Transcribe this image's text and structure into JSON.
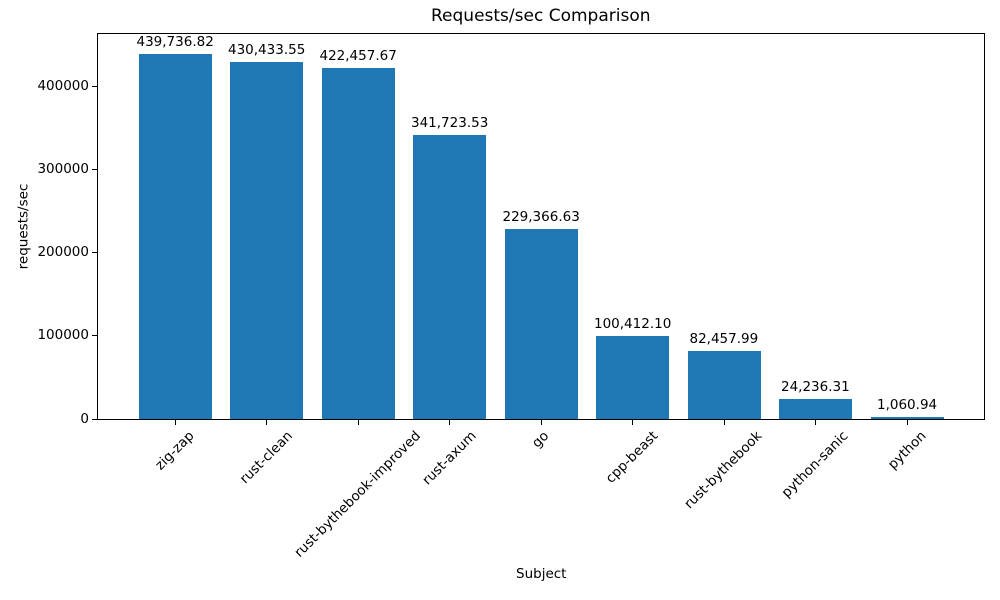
{
  "chart_data": {
    "type": "bar",
    "title": "Requests/sec Comparison",
    "xlabel": "Subject",
    "ylabel": "requests/sec",
    "categories": [
      "zig-zap",
      "rust-clean",
      "rust-bythebook-improved",
      "rust-axum",
      "go",
      "cpp-beast",
      "rust-bythebook",
      "python-sanic",
      "python"
    ],
    "values": [
      439736.82,
      430433.55,
      422457.67,
      341723.53,
      229366.63,
      100412.1,
      82457.99,
      24236.31,
      1060.94
    ],
    "value_labels": [
      "439,736.82",
      "430,433.55",
      "422,457.67",
      "341,723.53",
      "229,366.63",
      "100,412.10",
      "82,457.99",
      "24,236.31",
      "1,060.94"
    ],
    "yticks": [
      0,
      100000,
      200000,
      300000,
      400000
    ],
    "ytick_labels": [
      "0",
      "100000",
      "200000",
      "300000",
      "400000"
    ],
    "ylim": [
      0,
      465000
    ],
    "bar_color": "#1f77b4",
    "axis_color": "#000000",
    "background_color": "#ffffff",
    "grid": false,
    "legend": null,
    "x_tick_rotation_deg": 45
  }
}
